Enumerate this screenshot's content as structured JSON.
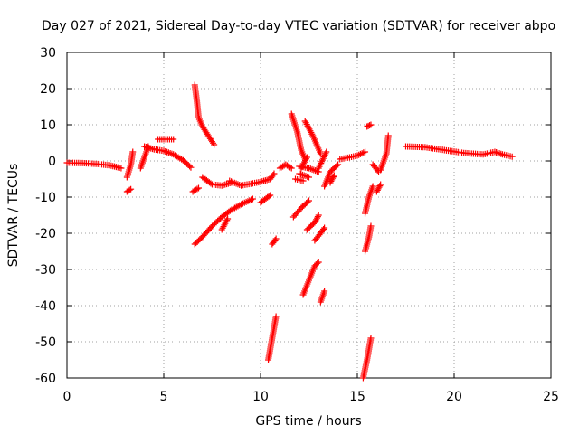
{
  "chart_data": {
    "type": "scatter",
    "title": "Day 027 of 2021, Sidereal Day-to-day VTEC variation (SDTVAR) for receiver abpo",
    "xlabel": "GPS time / hours",
    "ylabel": "SDTVAR / TECUs",
    "xlim": [
      0,
      25
    ],
    "ylim": [
      -60,
      30
    ],
    "x_ticks": [
      0,
      5,
      10,
      15,
      20,
      25
    ],
    "y_ticks": [
      -60,
      -50,
      -40,
      -30,
      -20,
      -10,
      0,
      10,
      20,
      30
    ],
    "x_tick_labels": [
      "0",
      "5",
      "10",
      "15",
      "20",
      "25"
    ],
    "y_tick_labels": [
      "-60",
      "-50",
      "-40",
      "-30",
      "-20",
      "-10",
      "0",
      "10",
      "20",
      "30"
    ],
    "grid": true,
    "marker": "+",
    "color": "#ff0000",
    "series": [
      {
        "segments": [
          [
            [
              0.0,
              -0.5
            ],
            [
              0.8,
              -0.6
            ],
            [
              1.5,
              -0.8
            ],
            [
              2.2,
              -1.2
            ],
            [
              2.8,
              -2.0
            ]
          ],
          [
            [
              3.1,
              -8.5
            ],
            [
              3.3,
              -7.8
            ]
          ],
          [
            [
              3.1,
              -4.5
            ],
            [
              3.3,
              -1.0
            ],
            [
              3.4,
              2.5
            ]
          ],
          [
            [
              3.8,
              -2.0
            ],
            [
              4.0,
              1.0
            ],
            [
              4.2,
              4.0
            ]
          ],
          [
            [
              4.0,
              4.0
            ],
            [
              4.5,
              3.2
            ],
            [
              5.0,
              2.8
            ],
            [
              5.5,
              1.8
            ],
            [
              6.0,
              0.2
            ],
            [
              6.4,
              -1.8
            ]
          ],
          [
            [
              4.7,
              6.0
            ],
            [
              5.5,
              6.0
            ]
          ],
          [
            [
              6.5,
              -8.5
            ],
            [
              6.8,
              -7.5
            ]
          ],
          [
            [
              6.6,
              21.0
            ],
            [
              6.7,
              17.0
            ],
            [
              6.8,
              12.0
            ],
            [
              7.0,
              9.5
            ],
            [
              7.3,
              7.0
            ],
            [
              7.6,
              4.5
            ]
          ],
          [
            [
              6.6,
              -23.0
            ],
            [
              7.0,
              -21.0
            ],
            [
              7.5,
              -18.0
            ],
            [
              8.0,
              -15.5
            ],
            [
              8.5,
              -13.5
            ],
            [
              9.0,
              -12.0
            ],
            [
              9.6,
              -10.5
            ]
          ],
          [
            [
              7.0,
              -4.5
            ],
            [
              7.5,
              -6.5
            ],
            [
              8.0,
              -6.8
            ],
            [
              8.5,
              -6.0
            ]
          ],
          [
            [
              8.0,
              -19.0
            ],
            [
              8.3,
              -16.0
            ]
          ],
          [
            [
              8.4,
              -5.5
            ],
            [
              9.0,
              -6.8
            ],
            [
              9.5,
              -6.3
            ],
            [
              10.0,
              -5.8
            ],
            [
              10.5,
              -5.0
            ],
            [
              10.7,
              -3.5
            ]
          ],
          [
            [
              10.0,
              -11.5
            ],
            [
              10.5,
              -9.5
            ]
          ],
          [
            [
              10.4,
              -55.0
            ],
            [
              10.6,
              -49.0
            ],
            [
              10.8,
              -43.0
            ]
          ],
          [
            [
              10.6,
              -23.0
            ],
            [
              10.8,
              -21.5
            ]
          ],
          [
            [
              11.0,
              -2.0
            ],
            [
              11.3,
              -1.0
            ],
            [
              11.6,
              -2.0
            ]
          ],
          [
            [
              11.6,
              13.0
            ],
            [
              11.9,
              8.0
            ],
            [
              12.1,
              3.0
            ],
            [
              12.3,
              0.5
            ]
          ],
          [
            [
              11.8,
              -5.0
            ],
            [
              12.2,
              -5.5
            ]
          ],
          [
            [
              11.7,
              -15.5
            ],
            [
              12.1,
              -13.0
            ],
            [
              12.5,
              -11.0
            ]
          ],
          [
            [
              12.0,
              -1.5
            ],
            [
              12.5,
              -2.0
            ],
            [
              13.0,
              -3.0
            ]
          ],
          [
            [
              12.1,
              -2.0
            ],
            [
              12.4,
              1.0
            ]
          ],
          [
            [
              12.3,
              11.0
            ],
            [
              12.7,
              7.0
            ],
            [
              13.1,
              2.0
            ]
          ],
          [
            [
              12.0,
              -3.5
            ],
            [
              12.5,
              -4.5
            ]
          ],
          [
            [
              12.2,
              -37.0
            ],
            [
              12.5,
              -33.0
            ],
            [
              12.8,
              -29.0
            ],
            [
              13.0,
              -28.0
            ]
          ],
          [
            [
              12.4,
              -19.0
            ],
            [
              12.8,
              -17.0
            ],
            [
              13.0,
              -15.0
            ]
          ],
          [
            [
              12.8,
              -22.0
            ],
            [
              13.1,
              -20.0
            ],
            [
              13.3,
              -18.5
            ]
          ],
          [
            [
              13.0,
              -2.0
            ],
            [
              13.4,
              2.5
            ]
          ],
          [
            [
              13.1,
              -39.0
            ],
            [
              13.3,
              -36.0
            ]
          ],
          [
            [
              13.3,
              -7.0
            ],
            [
              13.6,
              -3.0
            ],
            [
              14.0,
              -1.0
            ]
          ],
          [
            [
              13.6,
              -6.0
            ],
            [
              13.8,
              -4.0
            ]
          ],
          [
            [
              14.1,
              0.5
            ],
            [
              14.6,
              1.0
            ],
            [
              15.0,
              1.5
            ],
            [
              15.4,
              2.5
            ]
          ],
          [
            [
              15.3,
              -60.0
            ],
            [
              15.5,
              -55.0
            ],
            [
              15.7,
              -49.0
            ]
          ],
          [
            [
              15.4,
              -25.0
            ],
            [
              15.6,
              -21.0
            ],
            [
              15.7,
              -18.0
            ]
          ],
          [
            [
              15.4,
              -14.5
            ],
            [
              15.6,
              -10.0
            ],
            [
              15.8,
              -7.0
            ]
          ],
          [
            [
              15.5,
              9.5
            ],
            [
              15.7,
              10.0
            ]
          ],
          [
            [
              15.8,
              -1.0
            ],
            [
              16.1,
              -3.0
            ]
          ],
          [
            [
              16.0,
              -8.5
            ],
            [
              16.2,
              -6.5
            ]
          ],
          [
            [
              16.2,
              -2.5
            ],
            [
              16.5,
              2.0
            ],
            [
              16.6,
              7.0
            ]
          ],
          [
            [
              17.5,
              4.0
            ],
            [
              18.5,
              3.8
            ],
            [
              19.5,
              3.0
            ],
            [
              20.5,
              2.2
            ],
            [
              21.5,
              1.8
            ],
            [
              22.1,
              2.5
            ],
            [
              22.5,
              1.8
            ],
            [
              23.0,
              1.2
            ]
          ]
        ]
      }
    ]
  }
}
